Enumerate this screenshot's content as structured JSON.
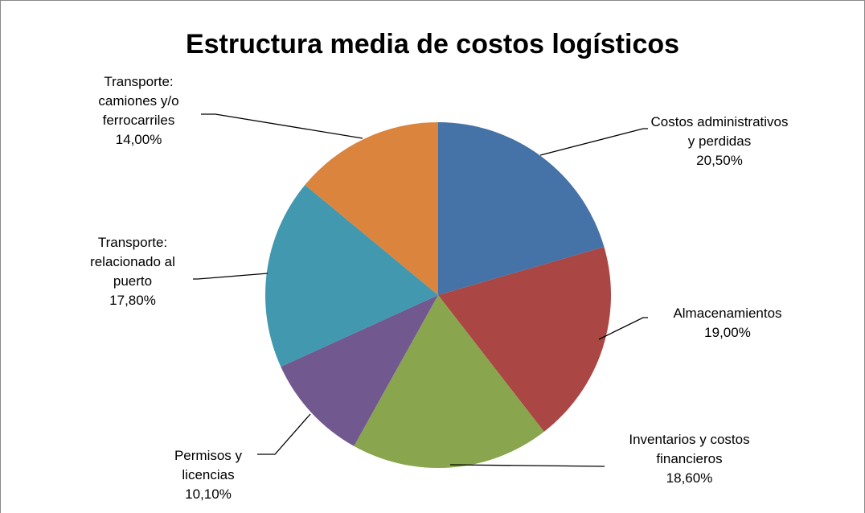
{
  "chart_data": {
    "type": "pie",
    "title": "Estructura media de costos logísticos",
    "categories": [
      "Costos administrativos y perdidas",
      "Almacenamientos",
      "Inventarios y costos financieros",
      "Permisos y licencias",
      "Transporte: relacionado al puerto",
      "Transporte: camiones y/o ferrocarriles"
    ],
    "values": [
      20.5,
      19.0,
      18.6,
      10.1,
      17.8,
      14.0
    ],
    "value_labels": [
      "20,50%",
      "19,00%",
      "18,60%",
      "10,10%",
      "17,80%",
      "14,00%"
    ],
    "colors": [
      "#4572a7",
      "#aa4643",
      "#89a54e",
      "#71588f",
      "#4198af",
      "#db843d"
    ]
  }
}
